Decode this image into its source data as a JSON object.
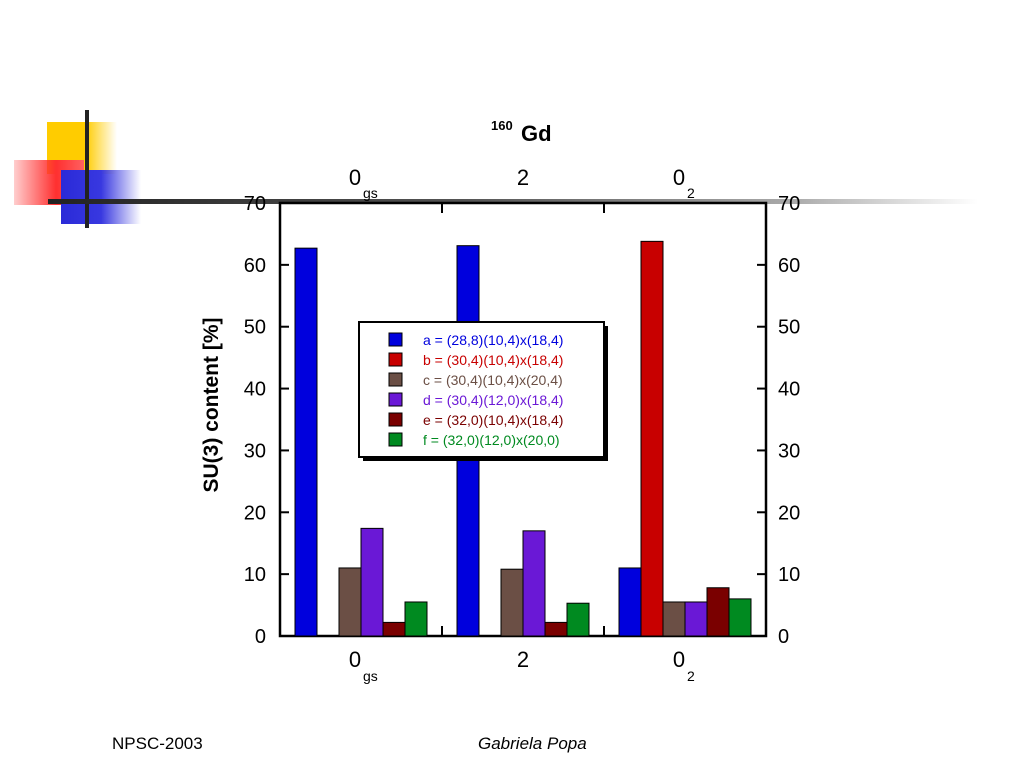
{
  "footer": {
    "left": "NPSC-2003",
    "right": "Gabriela Popa"
  },
  "chart_data": {
    "type": "bar",
    "title": "Gd",
    "title_sup": "160",
    "ylabel": "SU(3) content [%]",
    "xlabel": "",
    "ylim": [
      0,
      70
    ],
    "yticks": [
      0,
      10,
      20,
      30,
      40,
      50,
      60,
      70
    ],
    "grid": false,
    "legend_position": "center",
    "categories": [
      {
        "label": "0",
        "sub": "gs"
      },
      {
        "label": "2",
        "sub": ""
      },
      {
        "label": "0",
        "sub": "2"
      }
    ],
    "series": [
      {
        "name": "a = (28,8)(10,4)x(18,4)",
        "color": "#0000dd",
        "values": [
          62.7,
          63.1,
          11.0
        ]
      },
      {
        "name": "b = (30,4)(10,4)x(18,4)",
        "color": "#c80000",
        "values": [
          0,
          0,
          63.8
        ]
      },
      {
        "name": "c = (30,4)(10,4)x(20,4)",
        "color": "#6b4f45",
        "values": [
          11.0,
          10.8,
          5.5
        ]
      },
      {
        "name": "d = (30,4)(12,0)x(18,4)",
        "color": "#6a18d6",
        "values": [
          17.4,
          17.0,
          5.5
        ]
      },
      {
        "name": "e = (32,0)(10,4)x(18,4)",
        "color": "#7a0000",
        "values": [
          2.2,
          2.2,
          7.8
        ]
      },
      {
        "name": "f = (32,0)(12,0)x(20,0)",
        "color": "#008a20",
        "values": [
          5.5,
          5.3,
          6.0
        ]
      }
    ]
  }
}
